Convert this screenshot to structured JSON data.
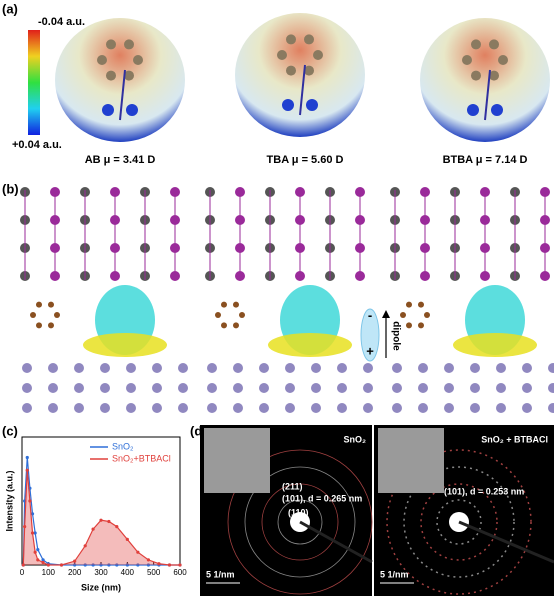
{
  "panels": [
    "(a)",
    "(b)",
    "(c)",
    "(d)"
  ],
  "colorbar": {
    "top": "-0.04 a.u.",
    "bottom": "+0.04 a.u."
  },
  "molecules": [
    {
      "label": "AB μ = 3.41 D"
    },
    {
      "label": "TBA μ = 5.60 D"
    },
    {
      "label": "BTBA μ = 7.14 D"
    }
  ],
  "dipole": {
    "label": "dipole",
    "minus": "-",
    "plus": "+"
  },
  "diffraction": [
    {
      "title": "SnO₂",
      "annotations": [
        "(211)",
        "(101), d = 0.265 nm",
        "(110)"
      ],
      "scale": "5 1/nm"
    },
    {
      "title": "SnO₂ + BTBACl",
      "annotations": [
        "(101), d = 0.253 nm"
      ],
      "scale": "5 1/nm"
    }
  ],
  "chart_data": {
    "type": "line",
    "xlabel": "Size (nm)",
    "ylabel": "Intensity (a.u.)",
    "x": [
      5,
      10,
      20,
      30,
      40,
      50,
      60,
      80,
      100,
      150,
      200,
      240,
      270,
      300,
      330,
      360,
      400,
      440,
      480,
      520,
      560,
      600
    ],
    "series": [
      {
        "name": "SnO₂",
        "color": "#2f6fd8",
        "values": [
          0,
          0.5,
          0.84,
          0.6,
          0.4,
          0.25,
          0.12,
          0.04,
          0.01,
          0,
          0,
          0,
          0,
          0,
          0,
          0,
          0,
          0,
          0,
          0,
          0,
          0
        ]
      },
      {
        "name": "SnO₂+BTBACl",
        "color": "#e0403c",
        "area": true,
        "values": [
          0,
          0.3,
          0.74,
          0.5,
          0.25,
          0.1,
          0.04,
          0.02,
          0,
          0,
          0.03,
          0.15,
          0.28,
          0.35,
          0.34,
          0.3,
          0.2,
          0.1,
          0.04,
          0.01,
          0,
          0
        ]
      }
    ],
    "xlim": [
      0,
      600
    ],
    "ylim": [
      0,
      1
    ],
    "xticks": [
      0,
      100,
      200,
      300,
      400,
      500,
      600
    ]
  }
}
